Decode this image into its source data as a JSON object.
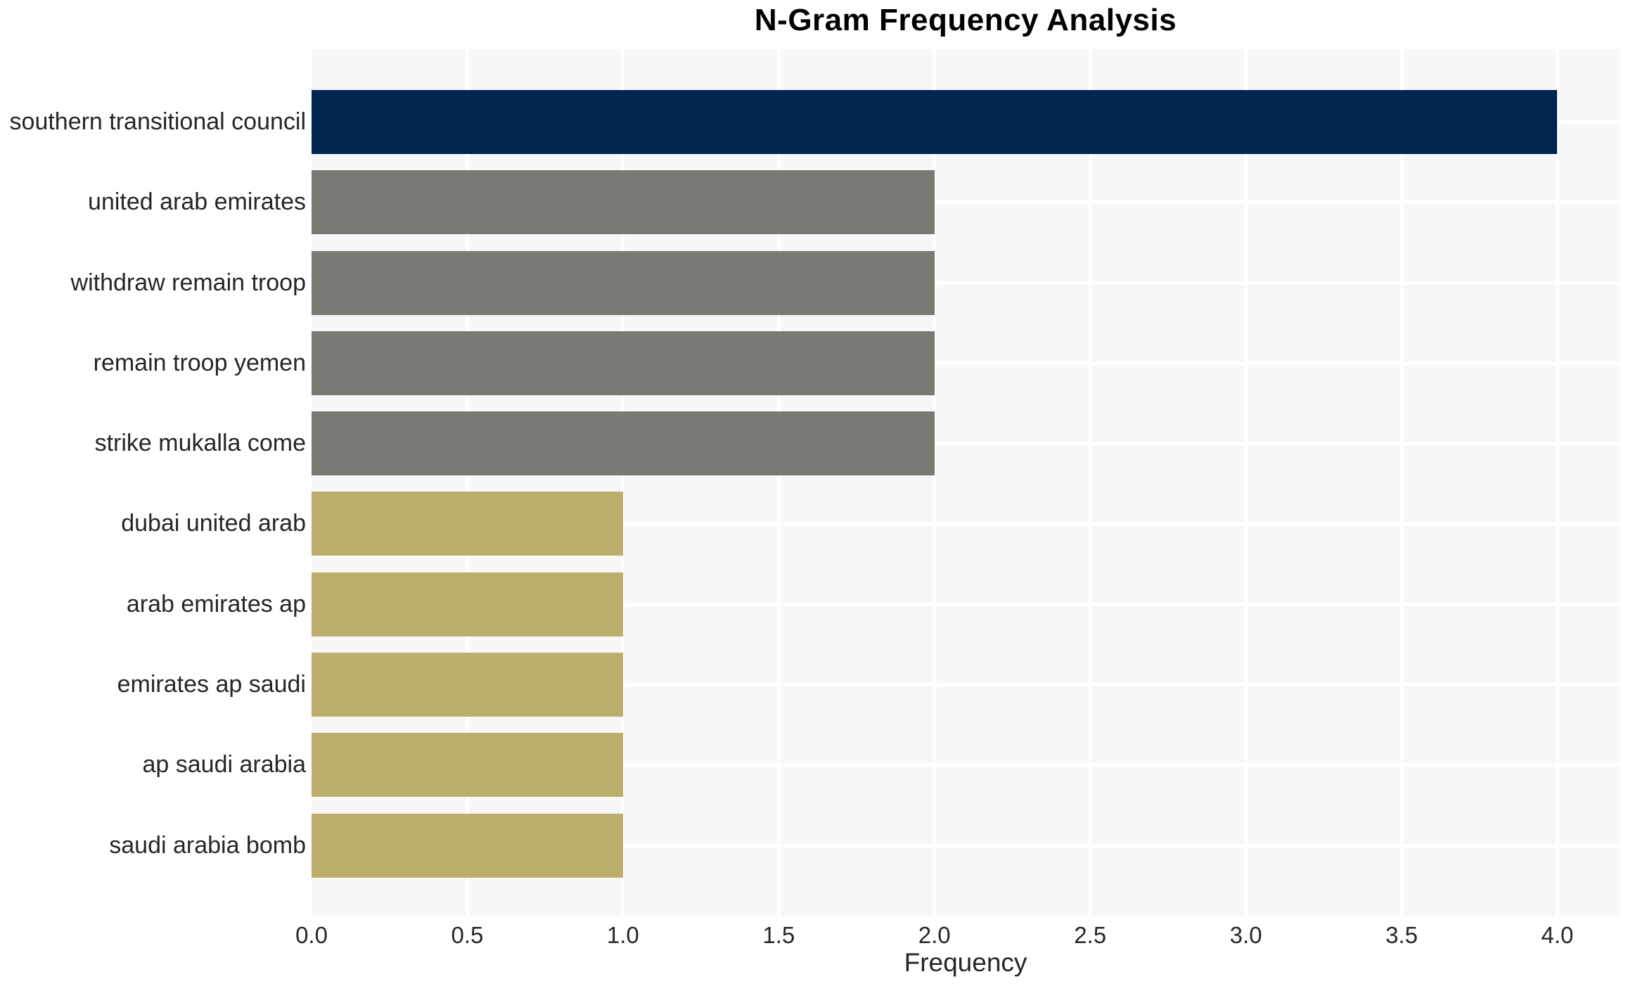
{
  "chart_data": {
    "type": "bar",
    "orientation": "horizontal",
    "title": "N-Gram Frequency Analysis",
    "xlabel": "Frequency",
    "ylabel": "",
    "categories": [
      "southern transitional council",
      "united arab emirates",
      "withdraw remain troop",
      "remain troop yemen",
      "strike mukalla come",
      "dubai united arab",
      "arab emirates ap",
      "emirates ap saudi",
      "ap saudi arabia",
      "saudi arabia bomb"
    ],
    "values": [
      4,
      2,
      2,
      2,
      2,
      1,
      1,
      1,
      1,
      1
    ],
    "bar_colors": [
      "#02254F",
      "#7A7974",
      "#7A7974",
      "#7A7974",
      "#7A7974",
      "#BCAD6B",
      "#BCAD6B",
      "#BCAD6B",
      "#BCAD6B",
      "#BCAD6B"
    ],
    "xticks": [
      "0.0",
      "0.5",
      "1.0",
      "1.5",
      "2.0",
      "2.5",
      "3.0",
      "3.5",
      "4.0"
    ],
    "xtick_values": [
      0,
      0.5,
      1,
      1.5,
      2,
      2.5,
      3,
      3.5,
      4
    ],
    "xlim": [
      0,
      4.2
    ],
    "grid": "white gridlines on light gray panel",
    "legend": false
  },
  "colors": {
    "panel_background": "#F7F7F7",
    "gridline": "#FFFFFF",
    "value4_bar": "#02254F",
    "value2_bar": "#7A7974",
    "value1_bar": "#BCAD6B",
    "tick_text": "#262626",
    "title_text": "#000000"
  }
}
